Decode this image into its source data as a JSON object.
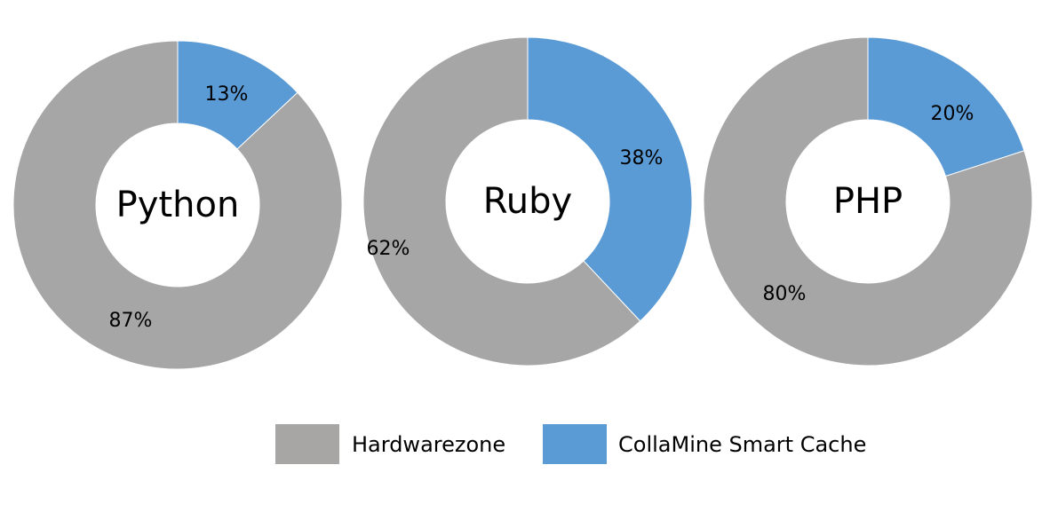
{
  "chart_data": [
    {
      "type": "pie",
      "title": "Python",
      "series": [
        {
          "name": "Hardwarezone",
          "value": 87,
          "label": "87%"
        },
        {
          "name": "CollaMine Smart Cache",
          "value": 13,
          "label": "13%"
        }
      ]
    },
    {
      "type": "pie",
      "title": "Ruby",
      "series": [
        {
          "name": "Hardwarezone",
          "value": 62,
          "label": "62%"
        },
        {
          "name": "CollaMine Smart Cache",
          "value": 38,
          "label": "38%"
        }
      ]
    },
    {
      "type": "pie",
      "title": "PHP",
      "series": [
        {
          "name": "Hardwarezone",
          "value": 80,
          "label": "80%"
        },
        {
          "name": "CollaMine Smart Cache",
          "value": 20,
          "label": "20%"
        }
      ]
    }
  ],
  "legend": [
    {
      "label": "Hardwarezone",
      "color": "#a6a6a6"
    },
    {
      "label": "CollaMine Smart Cache",
      "color": "#5b9bd5"
    }
  ],
  "colors": {
    "Hardwarezone": "#a6a6a6",
    "CollaMine Smart Cache": "#5b9bd5"
  }
}
